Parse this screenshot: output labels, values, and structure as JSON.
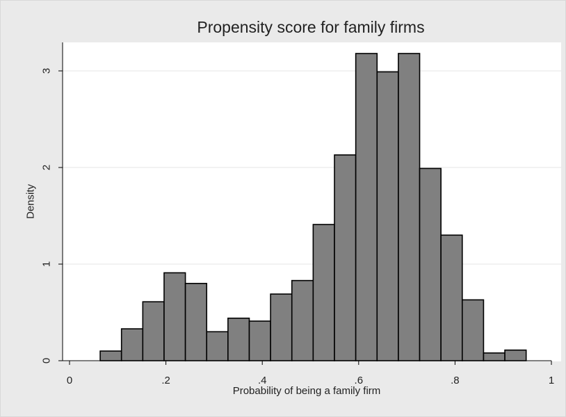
{
  "chart_data": {
    "type": "bar",
    "title": "Propensity score for family firms",
    "xlabel": "Probability of being a family firm",
    "ylabel": "Density",
    "xlim": [
      0,
      1
    ],
    "ylim": [
      0,
      3.3
    ],
    "x_ticks": [
      0,
      0.2,
      0.4,
      0.6,
      0.8,
      1
    ],
    "x_tick_labels": [
      "0",
      ".2",
      ".4",
      ".6",
      ".8",
      "1"
    ],
    "y_ticks": [
      0,
      1,
      2,
      3
    ],
    "y_tick_labels": [
      "0",
      "1",
      "2",
      "3"
    ],
    "grid": "horizontal",
    "bin_width": 0.0442,
    "bin_starts": [
      0.0636,
      0.1078,
      0.152,
      0.1962,
      0.2404,
      0.2846,
      0.3288,
      0.373,
      0.4172,
      0.4614,
      0.5056,
      0.5498,
      0.594,
      0.6382,
      0.6824,
      0.7266,
      0.7708,
      0.815,
      0.8592,
      0.9034
    ],
    "values": [
      0.1,
      0.33,
      0.61,
      0.91,
      0.8,
      0.3,
      0.44,
      0.41,
      0.69,
      0.83,
      1.41,
      2.13,
      3.18,
      2.99,
      3.18,
      1.99,
      1.3,
      0.63,
      0.08,
      0.11
    ],
    "bar_color": "#808080",
    "bar_edge_color": "#000000",
    "plot_background": "#ffffff",
    "outer_background": "#eaeaea"
  }
}
